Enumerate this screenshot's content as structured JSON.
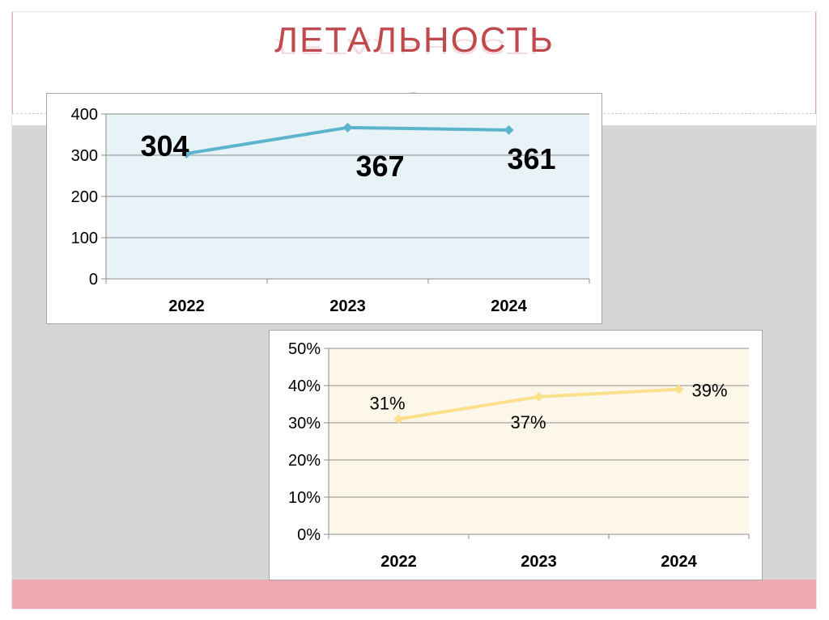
{
  "slide": {
    "title": "ЛЕТАЛЬНОСТЬ"
  },
  "colors": {
    "title": "#c0494f",
    "chart1_line": "#5bb3cc",
    "chart1_plot_bg": "#e7f3f7",
    "chart2_line": "#fbe08c",
    "chart2_plot_bg": "#fdf7e9",
    "gray_band": "#d6d6d8",
    "pink_band": "#eda9b1"
  },
  "chart_data": [
    {
      "type": "line",
      "categories": [
        "2022",
        "2023",
        "2024"
      ],
      "series": [
        {
          "values": [
            304,
            367,
            361
          ]
        }
      ],
      "data_labels": [
        "304",
        "367",
        "361"
      ],
      "ylim": [
        0,
        400
      ],
      "yticks": [
        0,
        100,
        200,
        300,
        400
      ],
      "ytick_labels": [
        "0",
        "100",
        "200",
        "300",
        "400"
      ],
      "grid": true,
      "legend": "none"
    },
    {
      "type": "line",
      "categories": [
        "2022",
        "2023",
        "2024"
      ],
      "series": [
        {
          "values": [
            0.31,
            0.37,
            0.39
          ]
        }
      ],
      "data_labels": [
        "31%",
        "37%",
        "39%"
      ],
      "ylim": [
        0,
        0.5
      ],
      "yticks": [
        0,
        0.1,
        0.2,
        0.3,
        0.4,
        0.5
      ],
      "ytick_labels": [
        "0%",
        "10%",
        "20%",
        "30%",
        "40%",
        "50%"
      ],
      "grid": true,
      "legend": "none"
    }
  ]
}
